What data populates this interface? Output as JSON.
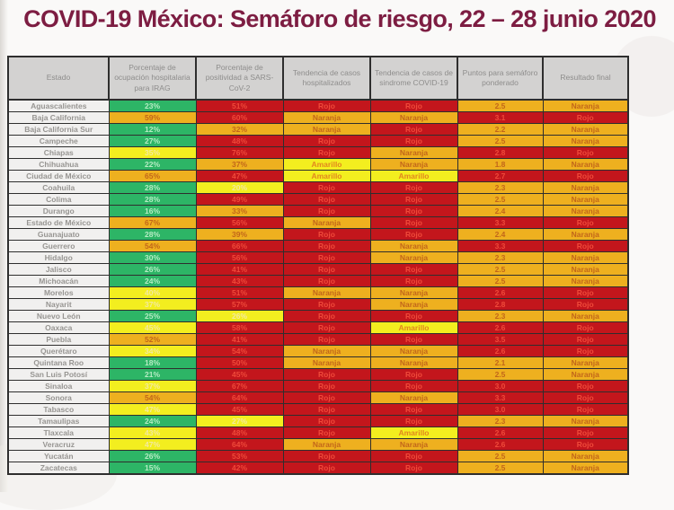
{
  "title": "COVID-19 México: Semáforo de riesgo, 22 – 28 junio 2020",
  "colors": {
    "green": "#2db566",
    "yellow": "#f3ee1f",
    "orange": "#eeb01f",
    "red": "#c3161c",
    "title_maroon": "#7d1d42",
    "header_gray": "#d3d2d1"
  },
  "chart_data": {
    "type": "table",
    "title": "COVID-19 México: Semáforo de riesgo, 22 – 28 junio 2020",
    "columns": [
      "Estado",
      "Porcentaje de ocupación hospitalaria para IRAG",
      "Porcentaje de positividad a SARS-CoV-2",
      "Tendencia de casos hospitalizados",
      "Tendencia de casos de sindrome COVID-19",
      "Puntos para semáforo ponderado",
      "Resultado final"
    ],
    "color_meaning": {
      "green": "verde",
      "yellow": "amarillo",
      "orange": "naranja",
      "red": "rojo"
    },
    "rows": [
      {
        "estado": "Aguascalientes",
        "cells": [
          {
            "v": "23%",
            "c": "green"
          },
          {
            "v": "51%",
            "c": "red"
          },
          {
            "v": "Rojo",
            "c": "red",
            "w": 1
          },
          {
            "v": "Rojo",
            "c": "red",
            "w": 1
          },
          {
            "v": "2.5",
            "c": "orange"
          },
          {
            "v": "Naranja",
            "c": "orange",
            "w": 1
          }
        ]
      },
      {
        "estado": "Baja California",
        "cells": [
          {
            "v": "59%",
            "c": "orange"
          },
          {
            "v": "60%",
            "c": "red"
          },
          {
            "v": "Naranja",
            "c": "orange",
            "w": 1
          },
          {
            "v": "Naranja",
            "c": "orange",
            "w": 1
          },
          {
            "v": "3.1",
            "c": "red"
          },
          {
            "v": "Rojo",
            "c": "red",
            "w": 1
          }
        ]
      },
      {
        "estado": "Baja California Sur",
        "cells": [
          {
            "v": "12%",
            "c": "green"
          },
          {
            "v": "32%",
            "c": "orange"
          },
          {
            "v": "Naranja",
            "c": "orange",
            "w": 1
          },
          {
            "v": "Rojo",
            "c": "red",
            "w": 1
          },
          {
            "v": "2.2",
            "c": "orange"
          },
          {
            "v": "Naranja",
            "c": "orange",
            "w": 1
          }
        ]
      },
      {
        "estado": "Campeche",
        "cells": [
          {
            "v": "27%",
            "c": "green"
          },
          {
            "v": "48%",
            "c": "red"
          },
          {
            "v": "Rojo",
            "c": "red",
            "w": 1
          },
          {
            "v": "Rojo",
            "c": "red",
            "w": 1
          },
          {
            "v": "2.5",
            "c": "orange"
          },
          {
            "v": "Naranja",
            "c": "orange",
            "w": 1
          }
        ]
      },
      {
        "estado": "Chiapas",
        "cells": [
          {
            "v": "35%",
            "c": "yellow"
          },
          {
            "v": "76%",
            "c": "red"
          },
          {
            "v": "Rojo",
            "c": "red",
            "w": 1
          },
          {
            "v": "Naranja",
            "c": "orange",
            "w": 1
          },
          {
            "v": "2.8",
            "c": "red"
          },
          {
            "v": "Rojo",
            "c": "red",
            "w": 1
          }
        ]
      },
      {
        "estado": "Chihuahua",
        "cells": [
          {
            "v": "22%",
            "c": "green"
          },
          {
            "v": "37%",
            "c": "orange"
          },
          {
            "v": "Amarillo",
            "c": "yellow",
            "w": 1
          },
          {
            "v": "Naranja",
            "c": "orange",
            "w": 1
          },
          {
            "v": "1.8",
            "c": "orange"
          },
          {
            "v": "Naranja",
            "c": "orange",
            "w": 1
          }
        ]
      },
      {
        "estado": "Ciudad de México",
        "cells": [
          {
            "v": "65%",
            "c": "orange"
          },
          {
            "v": "47%",
            "c": "red"
          },
          {
            "v": "Amarillo",
            "c": "yellow",
            "w": 1
          },
          {
            "v": "Amarillo",
            "c": "yellow",
            "w": 1
          },
          {
            "v": "2.7",
            "c": "red"
          },
          {
            "v": "Rojo",
            "c": "red",
            "w": 1
          }
        ]
      },
      {
        "estado": "Coahuila",
        "cells": [
          {
            "v": "28%",
            "c": "green"
          },
          {
            "v": "20%",
            "c": "yellow"
          },
          {
            "v": "Rojo",
            "c": "red",
            "w": 1
          },
          {
            "v": "Rojo",
            "c": "red",
            "w": 1
          },
          {
            "v": "2.3",
            "c": "orange"
          },
          {
            "v": "Naranja",
            "c": "orange",
            "w": 1
          }
        ]
      },
      {
        "estado": "Colima",
        "cells": [
          {
            "v": "28%",
            "c": "green"
          },
          {
            "v": "49%",
            "c": "red"
          },
          {
            "v": "Rojo",
            "c": "red",
            "w": 1
          },
          {
            "v": "Rojo",
            "c": "red",
            "w": 1
          },
          {
            "v": "2.5",
            "c": "orange"
          },
          {
            "v": "Naranja",
            "c": "orange",
            "w": 1
          }
        ]
      },
      {
        "estado": "Durango",
        "cells": [
          {
            "v": "16%",
            "c": "green"
          },
          {
            "v": "33%",
            "c": "orange"
          },
          {
            "v": "Rojo",
            "c": "red",
            "w": 1
          },
          {
            "v": "Rojo",
            "c": "red",
            "w": 1
          },
          {
            "v": "2.4",
            "c": "orange"
          },
          {
            "v": "Naranja",
            "c": "orange",
            "w": 1
          }
        ]
      },
      {
        "estado": "Estado de México",
        "cells": [
          {
            "v": "67%",
            "c": "orange"
          },
          {
            "v": "56%",
            "c": "red"
          },
          {
            "v": "Naranja",
            "c": "orange",
            "w": 1
          },
          {
            "v": "Rojo",
            "c": "red",
            "w": 1
          },
          {
            "v": "3.3",
            "c": "red"
          },
          {
            "v": "Rojo",
            "c": "red",
            "w": 1
          }
        ]
      },
      {
        "estado": "Guanajuato",
        "cells": [
          {
            "v": "28%",
            "c": "green"
          },
          {
            "v": "39%",
            "c": "orange"
          },
          {
            "v": "Rojo",
            "c": "red",
            "w": 1
          },
          {
            "v": "Rojo",
            "c": "red",
            "w": 1
          },
          {
            "v": "2.4",
            "c": "orange"
          },
          {
            "v": "Naranja",
            "c": "orange",
            "w": 1
          }
        ]
      },
      {
        "estado": "Guerrero",
        "cells": [
          {
            "v": "54%",
            "c": "orange"
          },
          {
            "v": "66%",
            "c": "red"
          },
          {
            "v": "Rojo",
            "c": "red",
            "w": 1
          },
          {
            "v": "Naranja",
            "c": "orange",
            "w": 1
          },
          {
            "v": "3.3",
            "c": "red"
          },
          {
            "v": "Rojo",
            "c": "red",
            "w": 1
          }
        ]
      },
      {
        "estado": "Hidalgo",
        "cells": [
          {
            "v": "30%",
            "c": "green"
          },
          {
            "v": "56%",
            "c": "red"
          },
          {
            "v": "Rojo",
            "c": "red",
            "w": 1
          },
          {
            "v": "Naranja",
            "c": "orange",
            "w": 1
          },
          {
            "v": "2.3",
            "c": "orange"
          },
          {
            "v": "Naranja",
            "c": "orange",
            "w": 1
          }
        ]
      },
      {
        "estado": "Jalisco",
        "cells": [
          {
            "v": "26%",
            "c": "green"
          },
          {
            "v": "41%",
            "c": "red"
          },
          {
            "v": "Rojo",
            "c": "red",
            "w": 1
          },
          {
            "v": "Rojo",
            "c": "red",
            "w": 1
          },
          {
            "v": "2.5",
            "c": "orange"
          },
          {
            "v": "Naranja",
            "c": "orange",
            "w": 1
          }
        ]
      },
      {
        "estado": "Michoacán",
        "cells": [
          {
            "v": "24%",
            "c": "green"
          },
          {
            "v": "43%",
            "c": "red"
          },
          {
            "v": "Rojo",
            "c": "red",
            "w": 1
          },
          {
            "v": "Rojo",
            "c": "red",
            "w": 1
          },
          {
            "v": "2.5",
            "c": "orange"
          },
          {
            "v": "Naranja",
            "c": "orange",
            "w": 1
          }
        ]
      },
      {
        "estado": "Morelos",
        "cells": [
          {
            "v": "40%",
            "c": "yellow"
          },
          {
            "v": "51%",
            "c": "red"
          },
          {
            "v": "Naranja",
            "c": "orange",
            "w": 1
          },
          {
            "v": "Naranja",
            "c": "orange",
            "w": 1
          },
          {
            "v": "2.6",
            "c": "red"
          },
          {
            "v": "Rojo",
            "c": "red",
            "w": 1
          }
        ]
      },
      {
        "estado": "Nayarit",
        "cells": [
          {
            "v": "37%",
            "c": "yellow"
          },
          {
            "v": "57%",
            "c": "red"
          },
          {
            "v": "Rojo",
            "c": "red",
            "w": 1
          },
          {
            "v": "Naranja",
            "c": "orange",
            "w": 1
          },
          {
            "v": "2.8",
            "c": "red"
          },
          {
            "v": "Rojo",
            "c": "red",
            "w": 1
          }
        ]
      },
      {
        "estado": "Nuevo León",
        "cells": [
          {
            "v": "25%",
            "c": "green"
          },
          {
            "v": "26%",
            "c": "yellow"
          },
          {
            "v": "Rojo",
            "c": "red",
            "w": 1
          },
          {
            "v": "Rojo",
            "c": "red",
            "w": 1
          },
          {
            "v": "2.3",
            "c": "orange"
          },
          {
            "v": "Naranja",
            "c": "orange",
            "w": 1
          }
        ]
      },
      {
        "estado": "Oaxaca",
        "cells": [
          {
            "v": "45%",
            "c": "yellow"
          },
          {
            "v": "58%",
            "c": "red"
          },
          {
            "v": "Rojo",
            "c": "red",
            "w": 1
          },
          {
            "v": "Amarillo",
            "c": "yellow",
            "w": 1
          },
          {
            "v": "2.6",
            "c": "red"
          },
          {
            "v": "Rojo",
            "c": "red",
            "w": 1
          }
        ]
      },
      {
        "estado": "Puebla",
        "cells": [
          {
            "v": "52%",
            "c": "orange"
          },
          {
            "v": "41%",
            "c": "red"
          },
          {
            "v": "Rojo",
            "c": "red",
            "w": 1
          },
          {
            "v": "Rojo",
            "c": "red",
            "w": 1
          },
          {
            "v": "3.5",
            "c": "red"
          },
          {
            "v": "Rojo",
            "c": "red",
            "w": 1
          }
        ]
      },
      {
        "estado": "Querétaro",
        "cells": [
          {
            "v": "34%",
            "c": "yellow"
          },
          {
            "v": "54%",
            "c": "red"
          },
          {
            "v": "Naranja",
            "c": "orange",
            "w": 1
          },
          {
            "v": "Naranja",
            "c": "orange",
            "w": 1
          },
          {
            "v": "2.6",
            "c": "red"
          },
          {
            "v": "Rojo",
            "c": "red",
            "w": 1
          }
        ]
      },
      {
        "estado": "Quintana Roo",
        "cells": [
          {
            "v": "18%",
            "c": "green"
          },
          {
            "v": "50%",
            "c": "red"
          },
          {
            "v": "Naranja",
            "c": "orange",
            "w": 1
          },
          {
            "v": "Naranja",
            "c": "orange",
            "w": 1
          },
          {
            "v": "2.1",
            "c": "orange"
          },
          {
            "v": "Naranja",
            "c": "orange",
            "w": 1
          }
        ]
      },
      {
        "estado": "San Luis Potosí",
        "cells": [
          {
            "v": "21%",
            "c": "green"
          },
          {
            "v": "45%",
            "c": "red"
          },
          {
            "v": "Rojo",
            "c": "red",
            "w": 1
          },
          {
            "v": "Rojo",
            "c": "red",
            "w": 1
          },
          {
            "v": "2.5",
            "c": "orange"
          },
          {
            "v": "Naranja",
            "c": "orange",
            "w": 1
          }
        ]
      },
      {
        "estado": "Sinaloa",
        "cells": [
          {
            "v": "37%",
            "c": "yellow"
          },
          {
            "v": "67%",
            "c": "red"
          },
          {
            "v": "Rojo",
            "c": "red",
            "w": 1
          },
          {
            "v": "Rojo",
            "c": "red",
            "w": 1
          },
          {
            "v": "3.0",
            "c": "red"
          },
          {
            "v": "Rojo",
            "c": "red",
            "w": 1
          }
        ]
      },
      {
        "estado": "Sonora",
        "cells": [
          {
            "v": "54%",
            "c": "orange"
          },
          {
            "v": "64%",
            "c": "red"
          },
          {
            "v": "Rojo",
            "c": "red",
            "w": 1
          },
          {
            "v": "Naranja",
            "c": "orange",
            "w": 1
          },
          {
            "v": "3.3",
            "c": "red"
          },
          {
            "v": "Rojo",
            "c": "red",
            "w": 1
          }
        ]
      },
      {
        "estado": "Tabasco",
        "cells": [
          {
            "v": "47%",
            "c": "yellow"
          },
          {
            "v": "45%",
            "c": "red"
          },
          {
            "v": "Rojo",
            "c": "red",
            "w": 1
          },
          {
            "v": "Rojo",
            "c": "red",
            "w": 1
          },
          {
            "v": "3.0",
            "c": "red"
          },
          {
            "v": "Rojo",
            "c": "red",
            "w": 1
          }
        ]
      },
      {
        "estado": "Tamaulipas",
        "cells": [
          {
            "v": "24%",
            "c": "green"
          },
          {
            "v": "27%",
            "c": "yellow"
          },
          {
            "v": "Rojo",
            "c": "red",
            "w": 1
          },
          {
            "v": "Rojo",
            "c": "red",
            "w": 1
          },
          {
            "v": "2.3",
            "c": "orange"
          },
          {
            "v": "Naranja",
            "c": "orange",
            "w": 1
          }
        ]
      },
      {
        "estado": "Tlaxcala",
        "cells": [
          {
            "v": "43%",
            "c": "yellow"
          },
          {
            "v": "48%",
            "c": "red"
          },
          {
            "v": "Rojo",
            "c": "red",
            "w": 1
          },
          {
            "v": "Amarillo",
            "c": "yellow",
            "w": 1
          },
          {
            "v": "2.6",
            "c": "red"
          },
          {
            "v": "Rojo",
            "c": "red",
            "w": 1
          }
        ]
      },
      {
        "estado": "Veracruz",
        "cells": [
          {
            "v": "47%",
            "c": "yellow"
          },
          {
            "v": "64%",
            "c": "red"
          },
          {
            "v": "Naranja",
            "c": "orange",
            "w": 1
          },
          {
            "v": "Naranja",
            "c": "orange",
            "w": 1
          },
          {
            "v": "2.6",
            "c": "red"
          },
          {
            "v": "Rojo",
            "c": "red",
            "w": 1
          }
        ]
      },
      {
        "estado": "Yucatán",
        "cells": [
          {
            "v": "26%",
            "c": "green"
          },
          {
            "v": "53%",
            "c": "red"
          },
          {
            "v": "Rojo",
            "c": "red",
            "w": 1
          },
          {
            "v": "Rojo",
            "c": "red",
            "w": 1
          },
          {
            "v": "2.5",
            "c": "orange"
          },
          {
            "v": "Naranja",
            "c": "orange",
            "w": 1
          }
        ]
      },
      {
        "estado": "Zacatecas",
        "cells": [
          {
            "v": "15%",
            "c": "green"
          },
          {
            "v": "42%",
            "c": "red"
          },
          {
            "v": "Rojo",
            "c": "red",
            "w": 1
          },
          {
            "v": "Rojo",
            "c": "red",
            "w": 1
          },
          {
            "v": "2.5",
            "c": "orange"
          },
          {
            "v": "Naranja",
            "c": "orange",
            "w": 1
          }
        ]
      }
    ]
  }
}
